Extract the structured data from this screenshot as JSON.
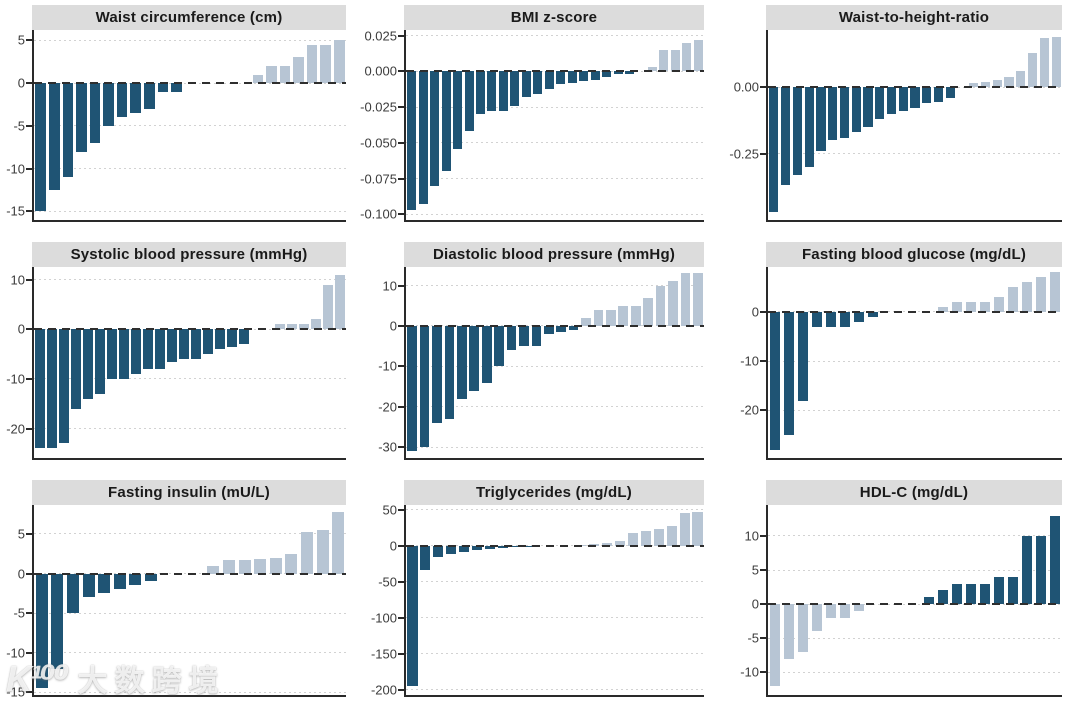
{
  "palette": {
    "favorable_dark_blue": "#1f5474",
    "unfavorable_light_blue": "#b7c5d4",
    "strip_gray": "#dcdcdc",
    "axis_black": "#2a2a2a"
  },
  "watermark": {
    "brand_mark": "K¹⁰⁰",
    "brand_name": "大数跨境"
  },
  "chart_data": [
    {
      "type": "bar",
      "title": "Waist circumference (cm)",
      "xlabel": "",
      "ylabel": "",
      "ylim": [
        -16,
        6.2
      ],
      "grid": "dotted-horizontal",
      "zero_line": "dashed",
      "yticks": [
        {
          "label": "5",
          "value": 5
        },
        {
          "label": "0",
          "value": 0
        },
        {
          "label": "-5",
          "value": -5
        },
        {
          "label": "-10",
          "value": -10
        },
        {
          "label": "-15",
          "value": -15
        }
      ],
      "values": [
        -15,
        -12.5,
        -11,
        -8,
        -7,
        -5,
        -4,
        -3.5,
        -3,
        -1,
        -1,
        0,
        0,
        0,
        0,
        0,
        1,
        2,
        2,
        3,
        4.5,
        4.5,
        5
      ],
      "negative_color": "#1f5474",
      "positive_color": "#b7c5d4"
    },
    {
      "type": "bar",
      "title": "BMI z-score",
      "xlabel": "",
      "ylabel": "",
      "ylim": [
        -0.104,
        0.029
      ],
      "grid": "dotted-horizontal",
      "zero_line": "dashed",
      "yticks": [
        {
          "label": "0.025",
          "value": 0.025
        },
        {
          "label": "0.000",
          "value": 0
        },
        {
          "label": "-0.025",
          "value": -0.025
        },
        {
          "label": "-0.050",
          "value": -0.05
        },
        {
          "label": "-0.075",
          "value": -0.075
        },
        {
          "label": "-0.100",
          "value": -0.1
        }
      ],
      "values": [
        -0.097,
        -0.093,
        -0.08,
        -0.07,
        -0.054,
        -0.042,
        -0.03,
        -0.028,
        -0.028,
        -0.024,
        -0.018,
        -0.016,
        -0.012,
        -0.009,
        -0.008,
        -0.007,
        -0.006,
        -0.004,
        -0.002,
        -0.002,
        0,
        0.003,
        0.015,
        0.015,
        0.02,
        0.022
      ],
      "negative_color": "#1f5474",
      "positive_color": "#b7c5d4"
    },
    {
      "type": "bar",
      "title": "Waist-to-height-ratio",
      "xlabel": "",
      "ylabel": "",
      "ylim": [
        -0.5,
        0.215
      ],
      "grid": "dotted-horizontal",
      "zero_line": "dashed",
      "yticks": [
        {
          "label": "0.00",
          "value": 0
        },
        {
          "label": "-0.25",
          "value": -0.25
        }
      ],
      "values": [
        -0.47,
        -0.37,
        -0.33,
        -0.3,
        -0.24,
        -0.2,
        -0.19,
        -0.17,
        -0.15,
        -0.12,
        -0.1,
        -0.09,
        -0.08,
        -0.06,
        -0.055,
        -0.04,
        0,
        0.015,
        0.02,
        0.025,
        0.04,
        0.06,
        0.13,
        0.185,
        0.19
      ],
      "negative_color": "#1f5474",
      "positive_color": "#b7c5d4"
    },
    {
      "type": "bar",
      "title": "Systolic blood pressure (mmHg)",
      "xlabel": "",
      "ylabel": "",
      "ylim": [
        -25.8,
        12.5
      ],
      "grid": "dotted-horizontal",
      "zero_line": "dashed",
      "yticks": [
        {
          "label": "10",
          "value": 10
        },
        {
          "label": "0",
          "value": 0
        },
        {
          "label": "-10",
          "value": -10
        },
        {
          "label": "-20",
          "value": -20
        }
      ],
      "values": [
        -24,
        -24,
        -23,
        -16,
        -14,
        -13,
        -10,
        -10,
        -9,
        -8,
        -8,
        -6.5,
        -6,
        -6,
        -5,
        -4,
        -3.5,
        -3,
        0,
        0,
        1,
        1,
        1,
        2,
        9,
        11
      ],
      "negative_color": "#1f5474",
      "positive_color": "#b7c5d4"
    },
    {
      "type": "bar",
      "title": "Diastolic blood pressure (mmHg)",
      "xlabel": "",
      "ylabel": "",
      "ylim": [
        -32.5,
        14.5
      ],
      "grid": "dotted-horizontal",
      "zero_line": "dashed",
      "yticks": [
        {
          "label": "10",
          "value": 10
        },
        {
          "label": "0",
          "value": 0
        },
        {
          "label": "-10",
          "value": -10
        },
        {
          "label": "-20",
          "value": -20
        },
        {
          "label": "-30",
          "value": -30
        }
      ],
      "values": [
        -31,
        -30,
        -24,
        -23,
        -18,
        -16,
        -14,
        -10,
        -6,
        -5,
        -5,
        -2,
        -1.5,
        -1,
        2,
        4,
        4,
        5,
        5,
        7,
        10,
        11,
        13,
        13
      ],
      "negative_color": "#1f5474",
      "positive_color": "#b7c5d4"
    },
    {
      "type": "bar",
      "title": "Fasting blood glucose (mg/dL)",
      "xlabel": "",
      "ylabel": "",
      "ylim": [
        -29.5,
        9
      ],
      "grid": "dotted-horizontal",
      "zero_line": "dashed",
      "yticks": [
        {
          "label": "0",
          "value": 0
        },
        {
          "label": "-10",
          "value": -10
        },
        {
          "label": "-20",
          "value": -20
        }
      ],
      "values": [
        -28,
        -25,
        -18,
        -3,
        -3,
        -3,
        -2,
        -1,
        0,
        0,
        0,
        0,
        1,
        2,
        2,
        2,
        3,
        5,
        6,
        7,
        8
      ],
      "negative_color": "#1f5474",
      "positive_color": "#b7c5d4"
    },
    {
      "type": "bar",
      "title": "Fasting insulin (mU/L)",
      "xlabel": "",
      "ylabel": "",
      "ylim": [
        -15.3,
        8.7
      ],
      "grid": "dotted-horizontal",
      "zero_line": "dashed",
      "yticks": [
        {
          "label": "5",
          "value": 5
        },
        {
          "label": "0",
          "value": 0
        },
        {
          "label": "-5",
          "value": -5
        },
        {
          "label": "-10",
          "value": -10
        },
        {
          "label": "-15",
          "value": -15
        }
      ],
      "values": [
        -14.5,
        -12,
        -5,
        -3,
        -2.5,
        -2,
        -1.5,
        -1,
        0,
        0,
        0,
        1,
        1.7,
        1.7,
        1.8,
        2,
        2.5,
        5.2,
        5.5,
        7.8
      ],
      "negative_color": "#1f5474",
      "positive_color": "#b7c5d4"
    },
    {
      "type": "bar",
      "title": "Triglycerides (mg/dL)",
      "xlabel": "",
      "ylabel": "",
      "ylim": [
        -207,
        57
      ],
      "grid": "dotted-horizontal",
      "zero_line": "dashed",
      "yticks": [
        {
          "label": "50",
          "value": 50
        },
        {
          "label": "0",
          "value": 0
        },
        {
          "label": "-50",
          "value": -50
        },
        {
          "label": "-100",
          "value": -100
        },
        {
          "label": "-150",
          "value": -150
        },
        {
          "label": "-200",
          "value": -200
        }
      ],
      "values": [
        -195,
        -34,
        -16,
        -11,
        -9,
        -6,
        -5,
        -3,
        -2,
        -1,
        0,
        0,
        0,
        1,
        2,
        4,
        6,
        18,
        20,
        23,
        28,
        46,
        47
      ],
      "negative_color": "#1f5474",
      "positive_color": "#b7c5d4"
    },
    {
      "type": "bar",
      "title": "HDL-C (mg/dL)",
      "xlabel": "",
      "ylabel": "",
      "ylim": [
        -13.3,
        14.6
      ],
      "grid": "dotted-horizontal",
      "zero_line": "dashed",
      "yticks": [
        {
          "label": "10",
          "value": 10
        },
        {
          "label": "5",
          "value": 5
        },
        {
          "label": "0",
          "value": 0
        },
        {
          "label": "-5",
          "value": -5
        },
        {
          "label": "-10",
          "value": -10
        }
      ],
      "values": [
        -12,
        -8,
        -7,
        -4,
        -2,
        -2,
        -1,
        0,
        0,
        0,
        0,
        1,
        2,
        3,
        3,
        3,
        4,
        4,
        10,
        10,
        13
      ],
      "negative_color": "#b7c5d4",
      "positive_color": "#1f5474"
    }
  ]
}
